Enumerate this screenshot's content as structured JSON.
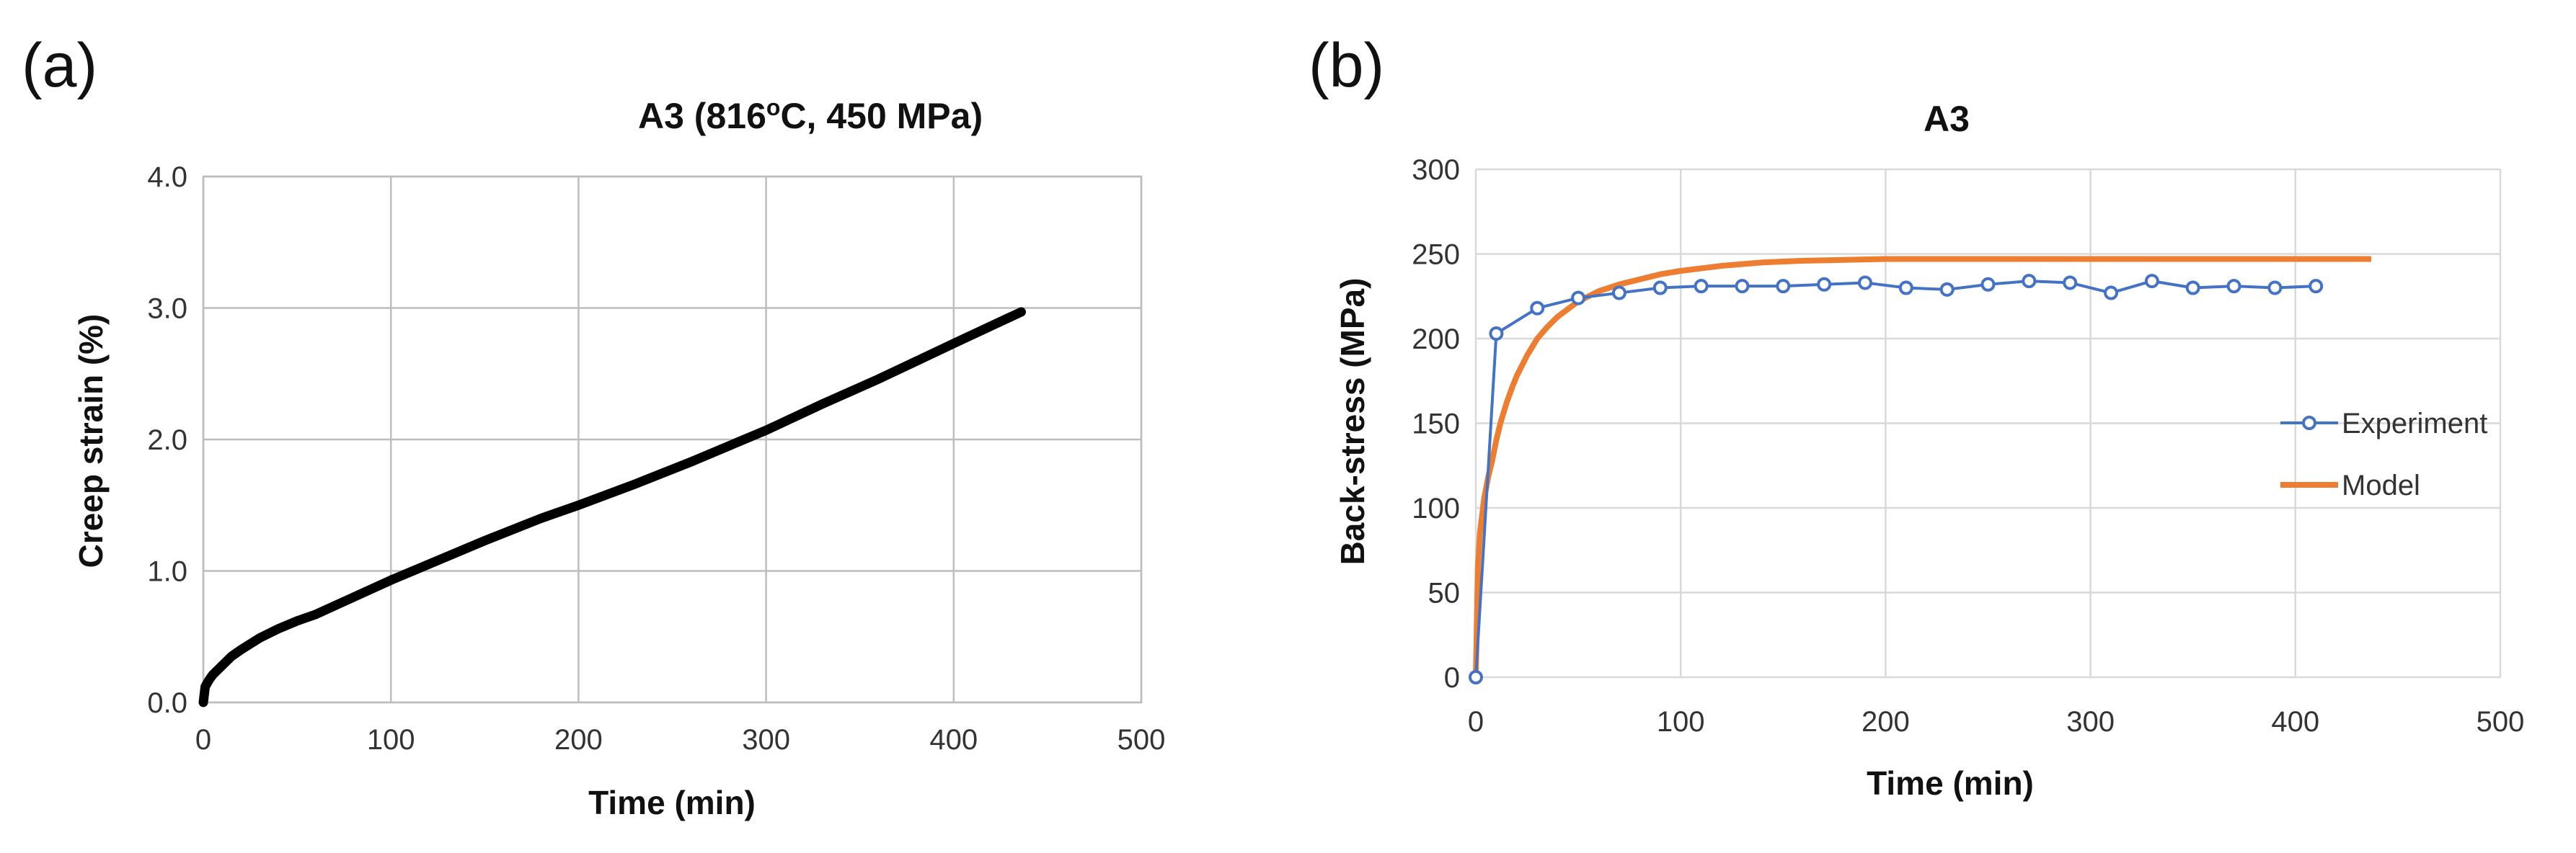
{
  "chart_data": [
    {
      "panel": "(a)",
      "type": "scatter",
      "title": "A3 (816",
      "title_sup": "o",
      "title_end": "C, 450 MPa)",
      "xlabel": "Time (min)",
      "ylabel": "Creep strain (%)",
      "xlim": [
        0,
        500
      ],
      "ylim": [
        0,
        4.0
      ],
      "xticks": [
        "0",
        "100",
        "200",
        "300",
        "400",
        "500"
      ],
      "yticks": [
        "0.0",
        "1.0",
        "2.0",
        "3.0",
        "4.0"
      ],
      "xtick_values": [
        0,
        100,
        200,
        300,
        400,
        500
      ],
      "ytick_values": [
        0,
        1,
        2,
        3,
        4
      ],
      "grid": true,
      "series": [
        {
          "name": "Creep strain",
          "color": "#000000",
          "x": [
            0,
            1,
            3,
            5,
            10,
            15,
            20,
            30,
            40,
            50,
            60,
            80,
            100,
            120,
            150,
            180,
            200,
            230,
            260,
            290,
            300,
            330,
            360,
            400,
            436
          ],
          "y": [
            0.0,
            0.12,
            0.17,
            0.21,
            0.28,
            0.35,
            0.4,
            0.49,
            0.56,
            0.62,
            0.67,
            0.8,
            0.93,
            1.05,
            1.23,
            1.4,
            1.5,
            1.66,
            1.83,
            2.01,
            2.07,
            2.27,
            2.46,
            2.73,
            2.97
          ]
        }
      ]
    },
    {
      "panel": "(b)",
      "type": "line",
      "title": "A3",
      "xlabel": "Time (min)",
      "ylabel": "Back-stress (MPa)",
      "xlim": [
        0,
        500
      ],
      "ylim": [
        0,
        300
      ],
      "xticks": [
        "0",
        "100",
        "200",
        "300",
        "400",
        "500"
      ],
      "yticks": [
        "0",
        "50",
        "100",
        "150",
        "200",
        "250",
        "300"
      ],
      "xtick_values": [
        0,
        100,
        200,
        300,
        400,
        500
      ],
      "ytick_values": [
        0,
        50,
        100,
        150,
        200,
        250,
        300
      ],
      "grid": true,
      "legend_position": "right",
      "series": [
        {
          "name": "Experiment",
          "color": "#4472c4",
          "marker": "circle",
          "x": [
            0,
            10,
            30,
            50,
            70,
            90,
            110,
            130,
            150,
            170,
            190,
            210,
            230,
            250,
            270,
            290,
            310,
            330,
            350,
            370,
            390,
            410
          ],
          "y": [
            0,
            203,
            218,
            224,
            227,
            230,
            231,
            231,
            231,
            232,
            233,
            230,
            229,
            232,
            234,
            233,
            227,
            234,
            230,
            231,
            230,
            231
          ]
        },
        {
          "name": "Model",
          "color": "#ed7d31",
          "marker": "none",
          "x": [
            0,
            1,
            2,
            4,
            6,
            8,
            10,
            12,
            15,
            18,
            20,
            25,
            30,
            35,
            40,
            50,
            60,
            70,
            80,
            90,
            100,
            120,
            140,
            160,
            200,
            250,
            300,
            350,
            400,
            437
          ],
          "y": [
            0,
            65,
            85,
            105,
            118,
            128,
            140,
            150,
            162,
            172,
            178,
            190,
            200,
            207,
            213,
            222,
            228,
            232,
            235,
            238,
            240,
            243,
            245,
            246,
            247,
            247,
            247,
            247,
            247,
            247
          ]
        }
      ]
    }
  ]
}
